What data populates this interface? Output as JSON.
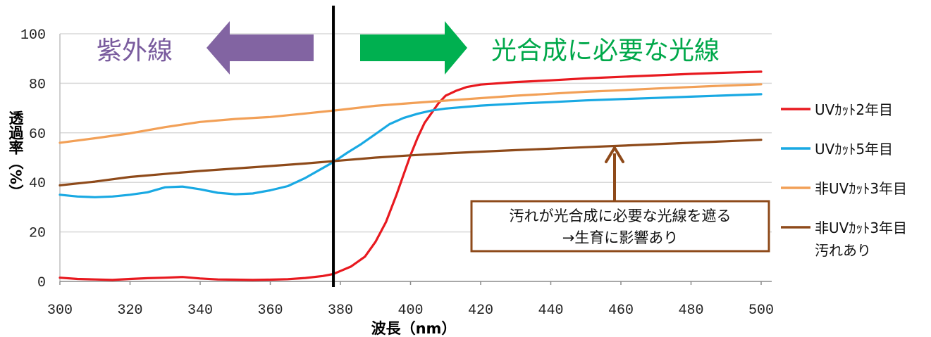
{
  "chart_data": {
    "type": "line",
    "title": "",
    "xlabel": "波長（nm）",
    "ylabel": "透過率（%）",
    "xlim": [
      300,
      500
    ],
    "ylim": [
      0,
      100
    ],
    "xticks": [
      300,
      320,
      340,
      360,
      380,
      400,
      420,
      440,
      460,
      480,
      500
    ],
    "yticks": [
      0,
      20,
      40,
      60,
      80,
      100
    ],
    "grid": "horizontal",
    "legend_position": "right",
    "divider_x": 378,
    "series": [
      {
        "name": "UVｶｯﾄ2年目",
        "color": "#e8191f",
        "points": [
          [
            300,
            1.5
          ],
          [
            305,
            1
          ],
          [
            310,
            0.8
          ],
          [
            315,
            0.6
          ],
          [
            320,
            1
          ],
          [
            325,
            1.3
          ],
          [
            330,
            1.5
          ],
          [
            335,
            1.8
          ],
          [
            340,
            1.2
          ],
          [
            345,
            0.8
          ],
          [
            350,
            0.7
          ],
          [
            355,
            0.6
          ],
          [
            360,
            0.7
          ],
          [
            365,
            0.9
          ],
          [
            370,
            1.4
          ],
          [
            375,
            2.2
          ],
          [
            378,
            3
          ],
          [
            380,
            4.2
          ],
          [
            383,
            6
          ],
          [
            387,
            10
          ],
          [
            390,
            16
          ],
          [
            393,
            24
          ],
          [
            396,
            35
          ],
          [
            398,
            43
          ],
          [
            400,
            51
          ],
          [
            402,
            58
          ],
          [
            404,
            64
          ],
          [
            406,
            68
          ],
          [
            408,
            72
          ],
          [
            410,
            75
          ],
          [
            413,
            77
          ],
          [
            416,
            78.5
          ],
          [
            420,
            79.5
          ],
          [
            430,
            80.5
          ],
          [
            440,
            81.2
          ],
          [
            450,
            82
          ],
          [
            460,
            82.6
          ],
          [
            470,
            83.2
          ],
          [
            480,
            83.8
          ],
          [
            490,
            84.3
          ],
          [
            500,
            84.7
          ]
        ]
      },
      {
        "name": "UVｶｯﾄ5年目",
        "color": "#19a9e3",
        "points": [
          [
            300,
            35
          ],
          [
            305,
            34.3
          ],
          [
            310,
            34
          ],
          [
            315,
            34.3
          ],
          [
            320,
            35
          ],
          [
            325,
            36
          ],
          [
            330,
            38
          ],
          [
            335,
            38.3
          ],
          [
            340,
            37.2
          ],
          [
            345,
            35.8
          ],
          [
            350,
            35.2
          ],
          [
            355,
            35.5
          ],
          [
            360,
            36.8
          ],
          [
            365,
            38.5
          ],
          [
            370,
            41.8
          ],
          [
            375,
            45.8
          ],
          [
            378,
            48.2
          ],
          [
            382,
            52
          ],
          [
            386,
            55.5
          ],
          [
            390,
            59.5
          ],
          [
            394,
            63.5
          ],
          [
            398,
            66
          ],
          [
            402,
            67.7
          ],
          [
            406,
            69
          ],
          [
            410,
            69.8
          ],
          [
            420,
            71
          ],
          [
            430,
            71.8
          ],
          [
            440,
            72.4
          ],
          [
            450,
            73.1
          ],
          [
            460,
            73.6
          ],
          [
            470,
            74.1
          ],
          [
            480,
            74.6
          ],
          [
            490,
            75.1
          ],
          [
            500,
            75.6
          ]
        ]
      },
      {
        "name": "非UVｶｯﾄ3年目",
        "color": "#f2a057",
        "points": [
          [
            300,
            56
          ],
          [
            310,
            57.8
          ],
          [
            320,
            59.8
          ],
          [
            330,
            62.3
          ],
          [
            340,
            64.4
          ],
          [
            350,
            65.6
          ],
          [
            360,
            66.4
          ],
          [
            370,
            67.8
          ],
          [
            380,
            69.3
          ],
          [
            390,
            70.9
          ],
          [
            400,
            72
          ],
          [
            410,
            73
          ],
          [
            420,
            74
          ],
          [
            430,
            75
          ],
          [
            440,
            75.8
          ],
          [
            450,
            76.6
          ],
          [
            460,
            77.2
          ],
          [
            470,
            77.9
          ],
          [
            480,
            78.5
          ],
          [
            490,
            79.1
          ],
          [
            500,
            79.6
          ]
        ]
      },
      {
        "name": "非UVｶｯﾄ3年目\n汚れあり",
        "color": "#8e4a1a",
        "points": [
          [
            300,
            38.8
          ],
          [
            310,
            40.3
          ],
          [
            320,
            42.2
          ],
          [
            330,
            43.4
          ],
          [
            340,
            44.6
          ],
          [
            350,
            45.6
          ],
          [
            360,
            46.6
          ],
          [
            370,
            47.6
          ],
          [
            380,
            48.8
          ],
          [
            390,
            50
          ],
          [
            400,
            50.9
          ],
          [
            410,
            51.7
          ],
          [
            420,
            52.4
          ],
          [
            430,
            53
          ],
          [
            440,
            53.6
          ],
          [
            450,
            54.2
          ],
          [
            460,
            54.8
          ],
          [
            470,
            55.4
          ],
          [
            480,
            56
          ],
          [
            490,
            56.6
          ],
          [
            500,
            57.2
          ]
        ]
      }
    ],
    "annotations": {
      "uv_label": "紫外線",
      "uv_color": "#8264a2",
      "photo_label": "光合成に必要な光線",
      "photo_color": "#00b050",
      "box_line1": "汚れが光合成に必要な光線を遮る",
      "box_line2": "→生育に影響あり",
      "box_color": "#8e4a1a",
      "arrow_target": [
        460,
        54.6
      ]
    }
  }
}
